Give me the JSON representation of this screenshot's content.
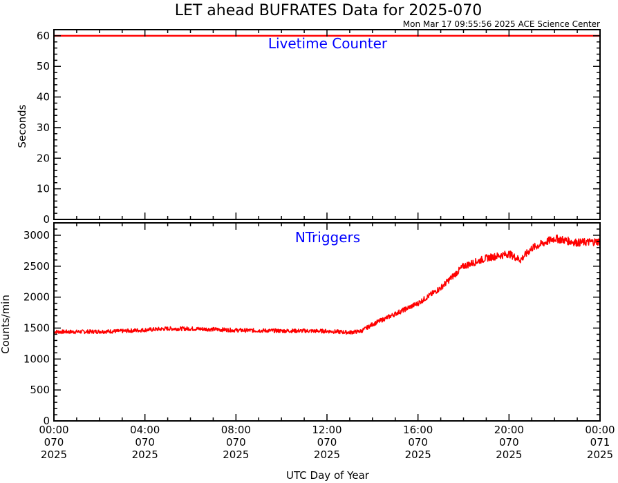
{
  "header": {
    "title": "LET ahead BUFRATES Data for 2025-070",
    "timestamp": "Mon Mar 17 09:55:56 2025 ACE Science Center"
  },
  "colors": {
    "series": "#ff0000",
    "panel_title": "#0000ff",
    "axes": "#000000"
  },
  "x_axis": {
    "label": "UTC Day of Year",
    "range_hours": [
      0,
      24
    ],
    "ticks": [
      {
        "hours": 0,
        "time": "00:00",
        "doy": "070",
        "year": "2025"
      },
      {
        "hours": 4,
        "time": "04:00",
        "doy": "070",
        "year": "2025"
      },
      {
        "hours": 8,
        "time": "08:00",
        "doy": "070",
        "year": "2025"
      },
      {
        "hours": 12,
        "time": "12:00",
        "doy": "070",
        "year": "2025"
      },
      {
        "hours": 16,
        "time": "16:00",
        "doy": "070",
        "year": "2025"
      },
      {
        "hours": 20,
        "time": "20:00",
        "doy": "070",
        "year": "2025"
      },
      {
        "hours": 24,
        "time": "00:00",
        "doy": "071",
        "year": "2025"
      }
    ]
  },
  "chart_data": [
    {
      "type": "line",
      "title": "Livetime Counter",
      "ylabel": "Seconds",
      "ylim": [
        0,
        62
      ],
      "yticks": [
        0,
        10,
        20,
        30,
        40,
        50,
        60
      ],
      "series": [
        {
          "x": [
            0,
            24
          ],
          "y": [
            60,
            60
          ]
        }
      ]
    },
    {
      "type": "line",
      "title": "NTriggers",
      "ylabel": "Counts/min",
      "ylim": [
        0,
        3200
      ],
      "yticks": [
        0,
        500,
        1000,
        1500,
        2000,
        2500,
        3000
      ],
      "series": [
        {
          "x": [
            0,
            1,
            2,
            3,
            4,
            5,
            6,
            7,
            8,
            9,
            10,
            11,
            12,
            13,
            13.5,
            14,
            15,
            16,
            17,
            18,
            19,
            20,
            20.5,
            21,
            22,
            23,
            24
          ],
          "y": [
            1440,
            1440,
            1445,
            1450,
            1470,
            1490,
            1490,
            1480,
            1465,
            1460,
            1455,
            1455,
            1450,
            1430,
            1450,
            1560,
            1730,
            1900,
            2150,
            2500,
            2630,
            2700,
            2600,
            2790,
            2950,
            2880,
            2900
          ]
        }
      ]
    }
  ]
}
